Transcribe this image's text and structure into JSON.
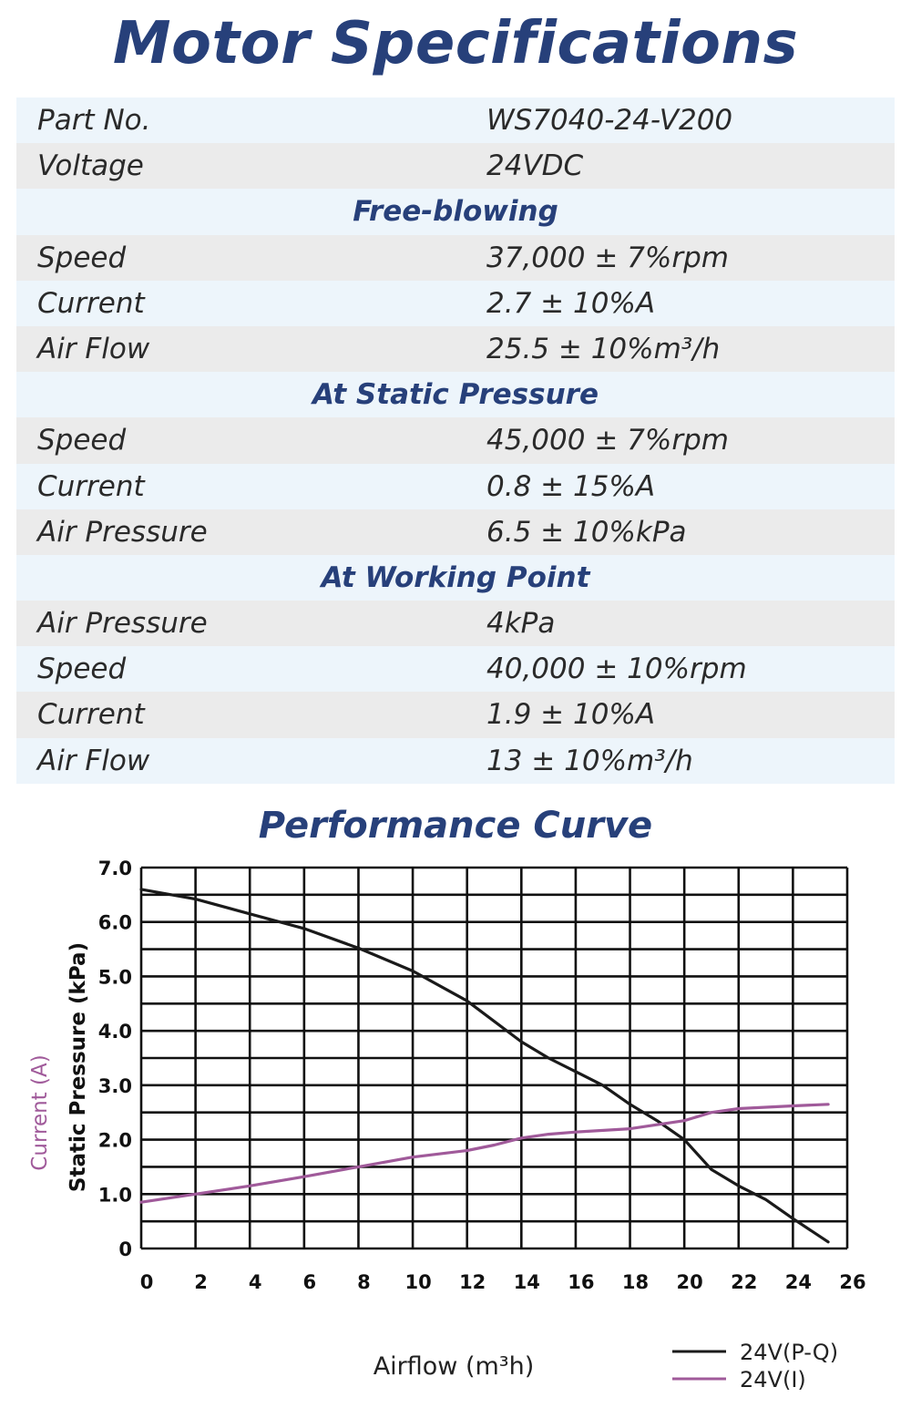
{
  "title": "Motor Specifications",
  "spec_rows": [
    {
      "kind": "pair",
      "label": "Part No.",
      "value": "WS7040-24-V200"
    },
    {
      "kind": "pair",
      "label": "Voltage",
      "value": "24VDC"
    },
    {
      "kind": "section",
      "label": "Free-blowing"
    },
    {
      "kind": "pair",
      "label": "Speed",
      "value": "37,000 ± 7%rpm"
    },
    {
      "kind": "pair",
      "label": "Current",
      "value": "2.7 ± 10%A"
    },
    {
      "kind": "pair",
      "label": "Air Flow",
      "value": "25.5 ± 10%m³/h"
    },
    {
      "kind": "section",
      "label": "At Static Pressure"
    },
    {
      "kind": "pair",
      "label": "Speed",
      "value": "45,000 ± 7%rpm"
    },
    {
      "kind": "pair",
      "label": "Current",
      "value": "0.8 ± 15%A"
    },
    {
      "kind": "pair",
      "label": "Air Pressure",
      "value": "6.5 ± 10%kPa"
    },
    {
      "kind": "section",
      "label": "At Working Point"
    },
    {
      "kind": "pair",
      "label": "Air Pressure",
      "value": "4kPa"
    },
    {
      "kind": "pair",
      "label": "Speed",
      "value": "40,000 ± 10%rpm"
    },
    {
      "kind": "pair",
      "label": "Current",
      "value": "1.9 ± 10%A"
    },
    {
      "kind": "pair",
      "label": "Air Flow",
      "value": "13 ± 10%m³/h"
    }
  ],
  "colors": {
    "accent": "#27407a",
    "row_light": "#edf5fb",
    "row_gray": "#ebebeb",
    "pq_line": "#1a1a1a",
    "current_line": "#a05a9a"
  },
  "chart_data": {
    "type": "line",
    "title": "Performance Curve",
    "xlabel": "Airflow (m³h)",
    "ylabel": "Static Pressure (kPa)",
    "ylabel_secondary": "Current (A)",
    "xlim": [
      0,
      26
    ],
    "ylim": [
      0,
      7
    ],
    "x_ticks": [
      "0",
      "2",
      "4",
      "6",
      "8",
      "10",
      "12",
      "14",
      "16",
      "18",
      "20",
      "22",
      "24",
      "26"
    ],
    "y_ticks": [
      "0",
      "1.0",
      "2.0",
      "3.0",
      "4.0",
      "5.0",
      "6.0",
      "7.0"
    ],
    "grid": true,
    "legend_position": "bottom-right",
    "series": [
      {
        "name": "24V(P-Q)",
        "color": "#1a1a1a",
        "x": [
          0,
          2,
          4,
          6,
          8,
          10,
          12,
          14,
          15,
          16,
          17,
          18,
          19,
          20,
          21,
          22,
          23,
          24,
          25.3
        ],
        "y": [
          6.6,
          6.42,
          6.15,
          5.88,
          5.52,
          5.1,
          4.55,
          3.8,
          3.5,
          3.25,
          3.0,
          2.65,
          2.35,
          2.0,
          1.45,
          1.15,
          0.9,
          0.55,
          0.12
        ]
      },
      {
        "name": "24V(I)",
        "color": "#a05a9a",
        "x": [
          0,
          2,
          4,
          6,
          8,
          10,
          12,
          13,
          14,
          15,
          16,
          18,
          20,
          21,
          22,
          24,
          25.3
        ],
        "y": [
          0.85,
          1.0,
          1.15,
          1.32,
          1.5,
          1.68,
          1.8,
          1.9,
          2.03,
          2.1,
          2.14,
          2.2,
          2.35,
          2.5,
          2.57,
          2.62,
          2.65
        ]
      }
    ]
  }
}
